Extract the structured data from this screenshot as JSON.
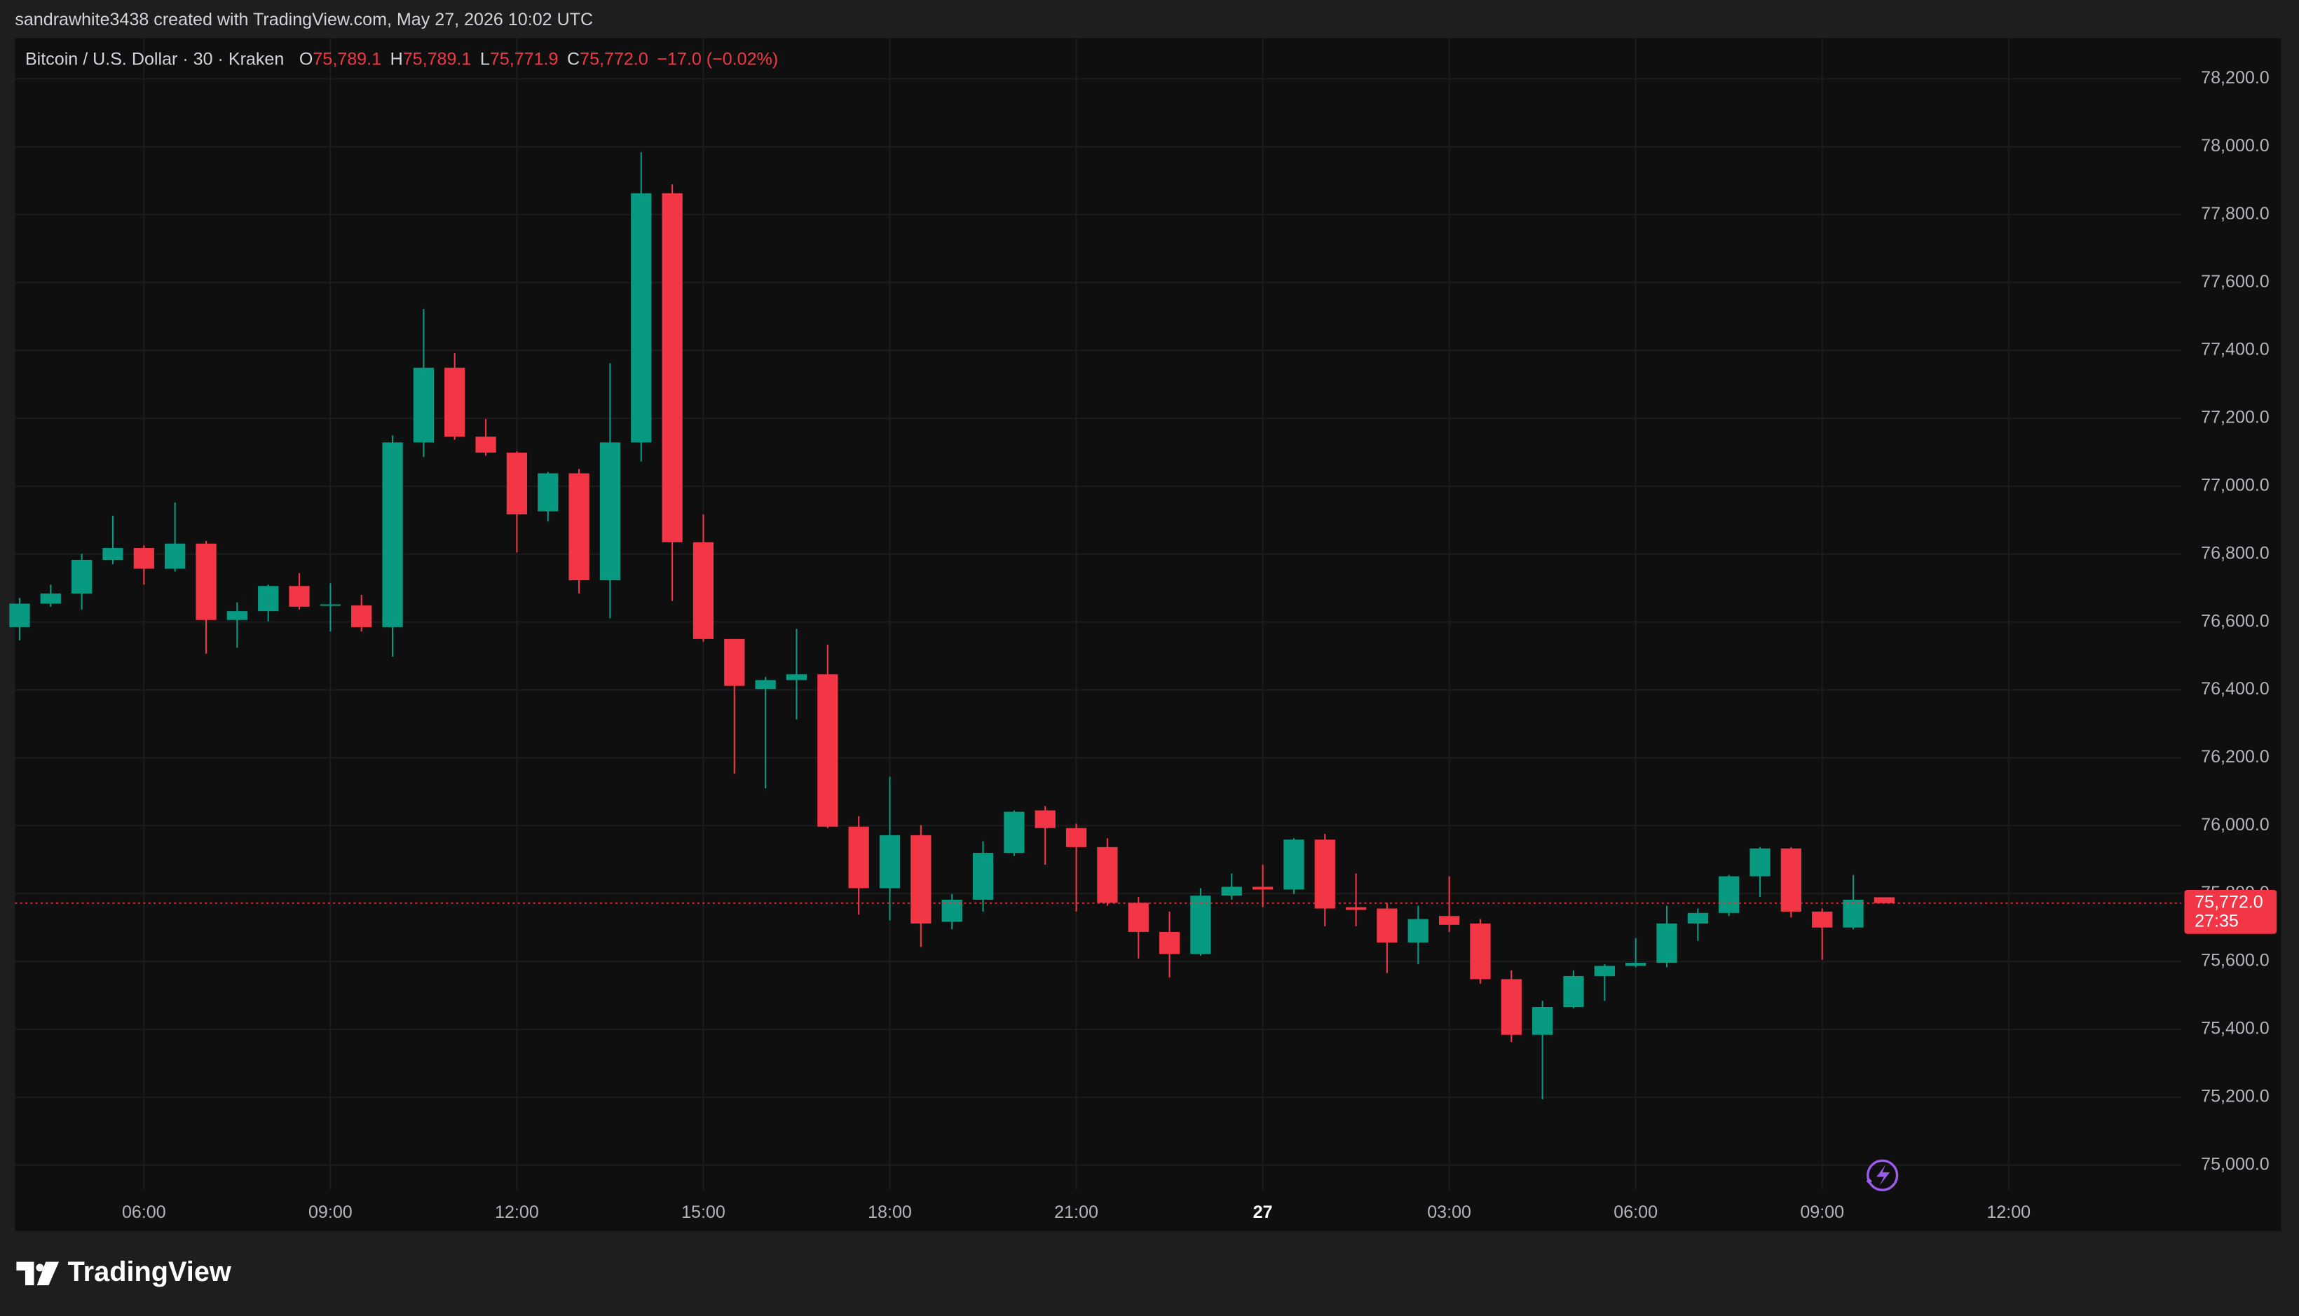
{
  "header": {
    "caption": "sandrawhite3438 created with TradingView.com, May 27, 2026 10:02 UTC"
  },
  "footer": {
    "brand": "TradingView"
  },
  "chart_data": {
    "type": "candlestick",
    "title": "Bitcoin / U.S. Dollar · 30 · Kraken",
    "legend_values": [
      {
        "key": "O",
        "text": "75,789.1"
      },
      {
        "key": "H",
        "text": "75,789.1"
      },
      {
        "key": "L",
        "text": "75,771.9"
      },
      {
        "key": "C",
        "text": "75,772.0"
      }
    ],
    "change": "−17.0 (−0.02%)",
    "up_color": "#089981",
    "down_color": "#f23645",
    "grid": true,
    "x": [
      4,
      4.5,
      5,
      5.5,
      6,
      6.5,
      7,
      7.5,
      8,
      8.5,
      9,
      9.5,
      10,
      10.5,
      11,
      11.5,
      12,
      12.5,
      13,
      13.5,
      14,
      14.5,
      15,
      15.5,
      16,
      16.5,
      17,
      17.5,
      18,
      18.5,
      19,
      19.5,
      20,
      20.5,
      21,
      21.5,
      22,
      22.5,
      23,
      23.5,
      24,
      24.5,
      25,
      25.5,
      26,
      26.5,
      27,
      27.5,
      28,
      28.5,
      29,
      29.5,
      30,
      30.5,
      31,
      31.5,
      32,
      32.5,
      33,
      33.5,
      34
    ],
    "open": [
      76585,
      76654,
      76684,
      76783,
      76818,
      76757,
      76831,
      76606,
      76632,
      76706,
      76649,
      76649,
      76585,
      77129,
      77349,
      77146,
      77099,
      76926,
      77038,
      76723,
      77129,
      77863,
      76835,
      76550,
      76403,
      76429,
      76446,
      75997,
      75816,
      75972,
      75717,
      75782,
      75920,
      76045,
      75993,
      75937,
      75773,
      75687,
      75622,
      75794,
      75820,
      75812,
      75959,
      75760,
      75756,
      75656,
      75734,
      75712,
      75548,
      75384,
      75466,
      75557,
      75587,
      75596,
      75712,
      75743,
      75851,
      75933,
      75747,
      75700,
      75789.1
    ],
    "high": [
      76671,
      76710,
      76801,
      76913,
      76826,
      76952,
      76839,
      76658,
      76710,
      76744,
      76714,
      76680,
      77150,
      77522,
      77392,
      77198,
      77103,
      77042,
      77051,
      77362,
      77984,
      77889,
      76917,
      76550,
      76438,
      76580,
      76533,
      76028,
      76144,
      76002,
      75799,
      75954,
      76045,
      76058,
      76006,
      75963,
      75790,
      75747,
      75816,
      75859,
      75885,
      75963,
      75976,
      75859,
      75773,
      75764,
      75851,
      75725,
      75574,
      75484,
      75574,
      75592,
      75669,
      75764,
      75756,
      75855,
      75937,
      75937,
      75756,
      75855,
      75789.1
    ],
    "low": [
      76546,
      76645,
      76637,
      76770,
      76710,
      76749,
      76507,
      76524,
      76602,
      76637,
      76572,
      76572,
      76498,
      77086,
      77137,
      77090,
      76805,
      76896,
      76684,
      76611,
      77073,
      76662,
      76542,
      76153,
      76110,
      76313,
      75993,
      75738,
      75721,
      75643,
      75695,
      75747,
      75911,
      75885,
      75747,
      75764,
      75609,
      75553,
      75617,
      75782,
      75760,
      75799,
      75704,
      75704,
      75566,
      75592,
      75687,
      75535,
      75363,
      75194,
      75462,
      75484,
      75583,
      75583,
      75661,
      75734,
      75790,
      75730,
      75605,
      75695,
      75771.9
    ],
    "close": [
      76654,
      76684,
      76783,
      76818,
      76757,
      76831,
      76606,
      76632,
      76706,
      76645,
      76652,
      76585,
      77129,
      77349,
      77146,
      77099,
      76917,
      77038,
      76723,
      77129,
      77863,
      76835,
      76550,
      76412,
      76429,
      76446,
      75997,
      75816,
      75972,
      75712,
      75782,
      75920,
      76041,
      75993,
      75937,
      75773,
      75687,
      75622,
      75794,
      75820,
      75812,
      75959,
      75756,
      75752,
      75656,
      75725,
      75708,
      75548,
      75384,
      75466,
      75557,
      75587,
      75596,
      75712,
      75743,
      75851,
      75933,
      75747,
      75700,
      75782,
      75772.0
    ],
    "last_price": {
      "value": 75772.0,
      "label": "75,772.0",
      "countdown": "27:35"
    },
    "xlim": [
      3.925,
      38.78
    ],
    "xticks": [
      {
        "value": 6,
        "label": "06:00"
      },
      {
        "value": 9,
        "label": "09:00"
      },
      {
        "value": 12,
        "label": "12:00"
      },
      {
        "value": 15,
        "label": "15:00"
      },
      {
        "value": 18,
        "label": "18:00"
      },
      {
        "value": 21,
        "label": "21:00"
      },
      {
        "value": 24,
        "label": "27"
      },
      {
        "value": 27,
        "label": "03:00"
      },
      {
        "value": 30,
        "label": "06:00"
      },
      {
        "value": 33,
        "label": "09:00"
      },
      {
        "value": 36,
        "label": "12:00"
      }
    ],
    "ylim": [
      74927,
      78320
    ],
    "yticks": [
      {
        "value": 75000,
        "label": "75,000.0"
      },
      {
        "value": 75200,
        "label": "75,200.0"
      },
      {
        "value": 75400,
        "label": "75,400.0"
      },
      {
        "value": 75600,
        "label": "75,600.0"
      },
      {
        "value": 75800,
        "label": "75,800.0"
      },
      {
        "value": 76000,
        "label": "76,000.0"
      },
      {
        "value": 76200,
        "label": "76,200.0"
      },
      {
        "value": 76400,
        "label": "76,400.0"
      },
      {
        "value": 76600,
        "label": "76,600.0"
      },
      {
        "value": 76800,
        "label": "76,800.0"
      },
      {
        "value": 77000,
        "label": "77,000.0"
      },
      {
        "value": 77200,
        "label": "77,200.0"
      },
      {
        "value": 77400,
        "label": "77,400.0"
      },
      {
        "value": 77600,
        "label": "77,600.0"
      },
      {
        "value": 77800,
        "label": "77,800.0"
      },
      {
        "value": 78000,
        "label": "78,000.0"
      },
      {
        "value": 78200,
        "label": "78,200.0"
      }
    ]
  }
}
